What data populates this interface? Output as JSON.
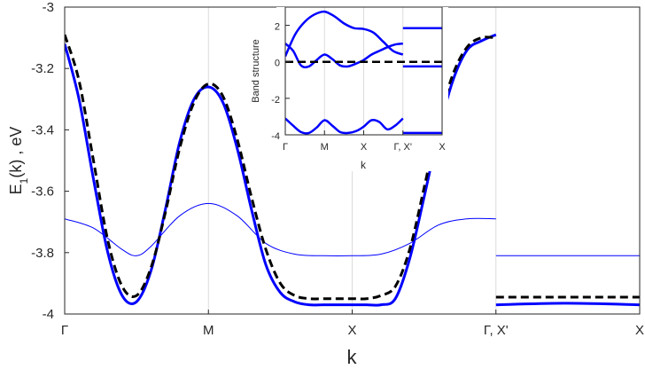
{
  "chart_data": [
    {
      "type": "line",
      "title": "",
      "xlabel": "k",
      "ylabel": "E",
      "ylabel_sub": "1",
      "ylabel_rest": "(k) , eV",
      "ylim": [
        -4,
        -3
      ],
      "yticks": [
        -4,
        -3.8,
        -3.6,
        -3.4,
        -3.2,
        -3
      ],
      "ytick_labels": [
        "-4",
        "-3.8",
        "-3.6",
        "-3.4",
        "-3.2",
        "-3"
      ],
      "xticks": [
        0,
        1,
        2,
        3,
        4
      ],
      "xtick_labels": [
        "Γ",
        "M",
        "X",
        "Γ, X'",
        "X"
      ],
      "grid": "vertical at symmetry points",
      "colors": {
        "band": "#0000ff",
        "thin_band": "#0000ff",
        "dashed": "#000000"
      },
      "series": [
        {
          "style": "thick-blue",
          "segments": [
            {
              "x": [
                0,
                0.1,
                0.2,
                0.3,
                0.4,
                0.5,
                0.6,
                0.7,
                0.8,
                0.9,
                1.0,
                1.1,
                1.2,
                1.3,
                1.4,
                1.5,
                1.6,
                1.7,
                1.8,
                1.9,
                2.0,
                2.1,
                2.2,
                2.3,
                2.4,
                2.5,
                2.6,
                2.7,
                2.8,
                2.9,
                3.0
              ],
              "y": [
                -3.12,
                -3.3,
                -3.56,
                -3.8,
                -3.94,
                -3.96,
                -3.86,
                -3.66,
                -3.44,
                -3.3,
                -3.26,
                -3.31,
                -3.46,
                -3.66,
                -3.84,
                -3.93,
                -3.96,
                -3.97,
                -3.97,
                -3.97,
                -3.97,
                -3.97,
                -3.97,
                -3.95,
                -3.82,
                -3.62,
                -3.41,
                -3.24,
                -3.14,
                -3.11,
                -3.09
              ]
            },
            {
              "x": [
                3.0,
                3.5,
                4.0
              ],
              "y": [
                -3.97,
                -3.965,
                -3.97
              ]
            }
          ]
        },
        {
          "style": "dashed-black",
          "segments": [
            {
              "x": [
                0,
                0.1,
                0.2,
                0.3,
                0.4,
                0.5,
                0.6,
                0.7,
                0.8,
                0.9,
                1.0,
                1.1,
                1.2,
                1.3,
                1.4,
                1.5,
                1.6,
                1.7,
                1.8,
                1.9,
                2.0,
                2.1,
                2.2,
                2.3,
                2.4,
                2.5,
                2.6,
                2.7,
                2.8,
                2.9,
                3.0
              ],
              "y": [
                -3.09,
                -3.24,
                -3.5,
                -3.76,
                -3.91,
                -3.94,
                -3.85,
                -3.67,
                -3.46,
                -3.31,
                -3.25,
                -3.29,
                -3.43,
                -3.62,
                -3.79,
                -3.9,
                -3.94,
                -3.95,
                -3.95,
                -3.95,
                -3.95,
                -3.95,
                -3.94,
                -3.91,
                -3.79,
                -3.59,
                -3.38,
                -3.22,
                -3.13,
                -3.1,
                -3.1
              ]
            },
            {
              "x": [
                3.0,
                4.0
              ],
              "y": [
                -3.945,
                -3.945
              ]
            }
          ]
        },
        {
          "style": "thin-blue",
          "segments": [
            {
              "x": [
                0,
                0.2,
                0.4,
                0.5,
                0.6,
                0.8,
                1.0,
                1.2,
                1.4,
                1.6,
                1.8,
                2.0,
                2.2,
                2.4,
                2.6,
                2.8,
                3.0
              ],
              "y": [
                -3.69,
                -3.72,
                -3.79,
                -3.81,
                -3.78,
                -3.68,
                -3.64,
                -3.68,
                -3.77,
                -3.805,
                -3.81,
                -3.81,
                -3.805,
                -3.77,
                -3.71,
                -3.69,
                -3.69
              ]
            },
            {
              "x": [
                3.0,
                4.0
              ],
              "y": [
                -3.81,
                -3.81
              ]
            }
          ]
        }
      ]
    },
    {
      "type": "line",
      "title": "",
      "xlabel": "k",
      "ylabel": "Band structure",
      "ylim": [
        -4,
        3
      ],
      "yticks": [
        -4,
        -2,
        0,
        2
      ],
      "ytick_labels": [
        "-4",
        "-2",
        "0",
        "2"
      ],
      "xticks": [
        0,
        1,
        2,
        3,
        4
      ],
      "xtick_labels": [
        "Γ",
        "M",
        "X",
        "Γ, X'",
        "X"
      ],
      "series": [
        {
          "style": "thick-blue",
          "segments": [
            {
              "x": [
                0,
                0.25,
                0.5,
                0.75,
                1.0,
                1.25,
                1.5,
                1.75,
                2.0,
                2.25,
                2.5,
                2.75,
                3.0
              ],
              "y": [
                0.3,
                1.5,
                2.2,
                2.6,
                2.75,
                2.5,
                2.1,
                1.85,
                1.8,
                1.6,
                1.1,
                0.6,
                0.4
              ]
            },
            {
              "x": [
                3.0,
                4.0
              ],
              "y": [
                1.85,
                1.85
              ]
            }
          ]
        },
        {
          "style": "thick-blue",
          "segments": [
            {
              "x": [
                0,
                0.2,
                0.4,
                0.6,
                0.8,
                1.0,
                1.2,
                1.4,
                1.6,
                1.8,
                2.0,
                2.2,
                2.4,
                2.6,
                2.8,
                3.0
              ],
              "y": [
                1.0,
                0.6,
                -0.2,
                -0.25,
                0.1,
                0.4,
                0.15,
                -0.2,
                -0.25,
                -0.1,
                0.1,
                0.4,
                0.6,
                0.8,
                0.95,
                1.0
              ]
            },
            {
              "x": [
                3.0,
                4.0
              ],
              "y": [
                -0.25,
                -0.25
              ]
            }
          ]
        },
        {
          "style": "thick-blue",
          "segments": [
            {
              "x": [
                0,
                0.2,
                0.4,
                0.6,
                0.8,
                1.0,
                1.2,
                1.4,
                1.6,
                1.8,
                2.0,
                2.2,
                2.4,
                2.6,
                2.8,
                3.0
              ],
              "y": [
                -3.1,
                -3.5,
                -3.85,
                -3.9,
                -3.6,
                -3.2,
                -3.5,
                -3.85,
                -3.9,
                -3.8,
                -3.55,
                -3.2,
                -3.3,
                -3.7,
                -3.5,
                -3.1
              ]
            },
            {
              "x": [
                3.0,
                4.0
              ],
              "y": [
                -3.9,
                -3.9
              ]
            }
          ]
        },
        {
          "style": "dashed-black",
          "segments": [
            {
              "x": [
                0,
                4.0
              ],
              "y": [
                0,
                0
              ]
            }
          ]
        }
      ]
    }
  ]
}
